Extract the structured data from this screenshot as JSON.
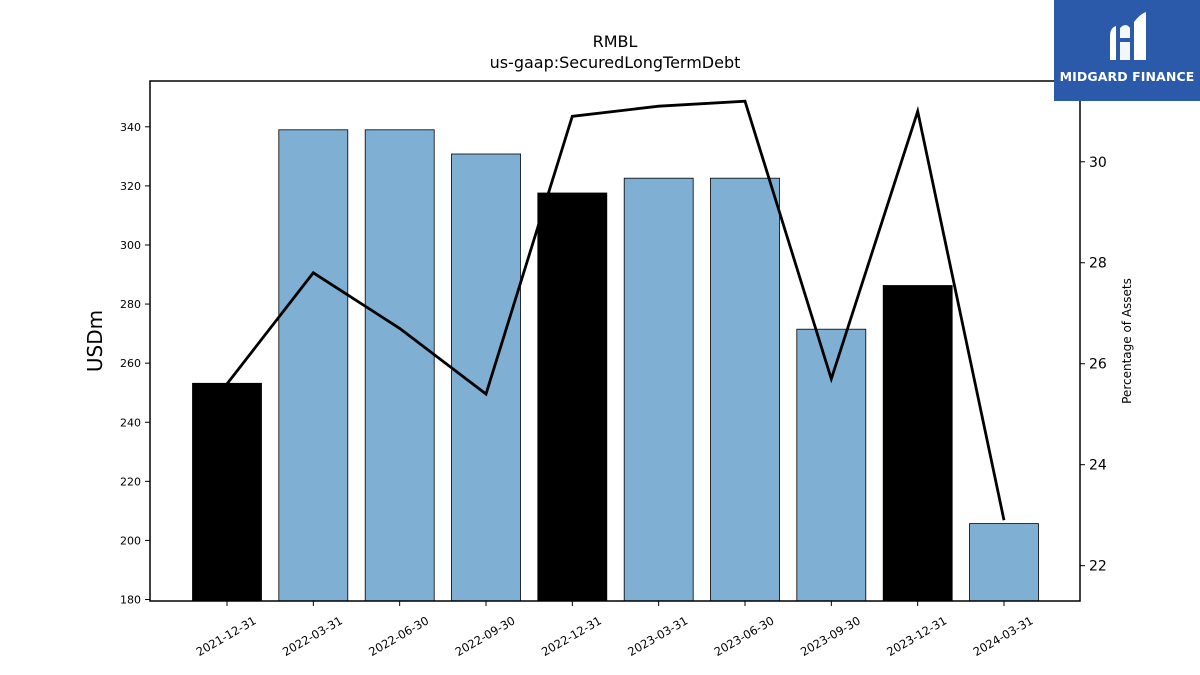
{
  "chart_data": {
    "type": "bar",
    "title": "RMBL",
    "subtitle": "us-gaap:SecuredLongTermDebt",
    "ylabel": "USDm",
    "y2label": "Percentage of Assets",
    "categories": [
      "2021-12-31",
      "2022-03-31",
      "2022-06-30",
      "2022-09-30",
      "2022-12-31",
      "2023-03-31",
      "2023-06-30",
      "2023-09-30",
      "2023-12-31",
      "2024-03-31"
    ],
    "values": [
      253.2,
      339.0,
      339.0,
      330.8,
      317.6,
      322.6,
      322.6,
      271.5,
      286.3,
      205.7
    ],
    "bar_colors": [
      "#000000",
      "#7fb0d4",
      "#7fb0d4",
      "#7fb0d4",
      "#000000",
      "#7fb0d4",
      "#7fb0d4",
      "#7fb0d4",
      "#000000",
      "#7fb0d4"
    ],
    "line_series": {
      "axis": "right",
      "values": [
        25.6,
        27.8,
        26.7,
        25.4,
        30.9,
        31.1,
        31.2,
        25.7,
        31.0,
        22.9
      ],
      "color": "#000000"
    },
    "ylim": [
      179.5,
      355.5
    ],
    "y2lim": [
      21.3,
      31.6
    ],
    "yticks": [
      180,
      200,
      220,
      240,
      260,
      280,
      300,
      320,
      340
    ],
    "y2ticks": [
      22,
      24,
      26,
      28,
      30
    ],
    "grid": false
  },
  "logo": {
    "text": "MIDGARD FINANCE",
    "background": "#2b5aab"
  }
}
